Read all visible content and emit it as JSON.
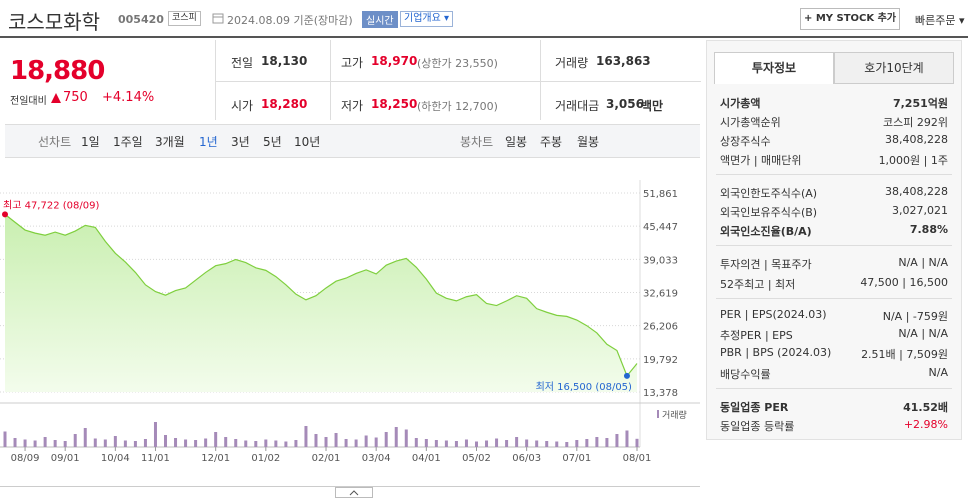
{
  "header": {
    "name": "코스모화학",
    "code": "005420",
    "market": "코스피",
    "date": "2024.08.09 기준(장마감)",
    "realtime": "실시간",
    "overview": "기업개요",
    "mystock": "+ MY STOCK 추가",
    "quick_order": "빠른주문"
  },
  "quote": {
    "price": "18,880",
    "change_label": "전일대비",
    "change": "750",
    "change_pct": "+4.14%"
  },
  "stats": [
    [
      {
        "label": "전일",
        "value": "18,130"
      },
      {
        "label": "고가",
        "value": "18,970",
        "note": "(상한가 23,550)"
      },
      {
        "label": "거래량",
        "value": "163,863"
      }
    ],
    [
      {
        "label": "시가",
        "value": "18,280"
      },
      {
        "label": "저가",
        "value": "18,250",
        "note": "(하한가 12,700)"
      },
      {
        "label": "거래대금",
        "value": "3,056",
        "unit": "백만"
      }
    ]
  ],
  "chart_tabs": {
    "line_label": "선차트",
    "line": [
      "1일",
      "1주일",
      "3개월",
      "1년",
      "3년",
      "5년",
      "10년"
    ],
    "candle_label": "봉차트",
    "candle": [
      "일봉",
      "주봉",
      "월봉"
    ]
  },
  "chart_data": {
    "type": "line",
    "color": "#7fcf3e",
    "categories": [
      null,
      null,
      "08/09",
      null,
      null,
      null,
      "09/01",
      null,
      null,
      null,
      null,
      "10/04",
      null,
      null,
      null,
      "11/01",
      null,
      null,
      null,
      null,
      null,
      "12/01",
      null,
      null,
      null,
      null,
      "01/02",
      null,
      null,
      null,
      null,
      null,
      "02/01",
      null,
      null,
      null,
      null,
      "03/04",
      null,
      null,
      null,
      null,
      "04/01",
      null,
      null,
      null,
      null,
      "05/02",
      null,
      null,
      null,
      null,
      "06/03",
      null,
      null,
      null,
      null,
      "07/01",
      null,
      null,
      null,
      null,
      null,
      "08/01"
    ],
    "values": [
      47722,
      46200,
      44700,
      44100,
      43700,
      44300,
      43700,
      44500,
      45600,
      45200,
      42500,
      40200,
      38500,
      36500,
      34100,
      32800,
      32100,
      33000,
      33500,
      35000,
      36500,
      37800,
      38200,
      39000,
      38400,
      37400,
      36900,
      35700,
      34100,
      32300,
      31200,
      32000,
      33500,
      34800,
      35400,
      36300,
      37000,
      36200,
      37900,
      38700,
      39200,
      37500,
      35200,
      32500,
      31500,
      31000,
      31800,
      32200,
      30500,
      30100,
      31000,
      32000,
      31500,
      29500,
      28800,
      28200,
      28000,
      27300,
      26200,
      24800,
      22600,
      21400,
      16500,
      18880
    ],
    "ylim": [
      13378,
      51861
    ],
    "yticks": [
      {
        "value": 51861,
        "label": "51,861"
      },
      {
        "value": 45447,
        "label": "45,447"
      },
      {
        "value": 39033,
        "label": "39,033"
      },
      {
        "value": 32619,
        "label": "32,619"
      },
      {
        "value": 26206,
        "label": "26,206"
      },
      {
        "value": 19792,
        "label": "19,792"
      },
      {
        "value": 13378,
        "label": "13,378"
      }
    ],
    "grid": true,
    "annotations": {
      "high": "최고 47,722 (08/09)",
      "low": "최저 16,500 (08/05)"
    },
    "volume": {
      "name": "거래량",
      "color": "#a58ab8",
      "ylim": [
        0,
        800000
      ],
      "values": [
        310000,
        180000,
        150000,
        130000,
        200000,
        140000,
        120000,
        260000,
        380000,
        170000,
        150000,
        220000,
        130000,
        120000,
        160000,
        500000,
        240000,
        180000,
        150000,
        140000,
        170000,
        300000,
        200000,
        160000,
        130000,
        120000,
        150000,
        130000,
        110000,
        140000,
        420000,
        260000,
        200000,
        280000,
        160000,
        150000,
        230000,
        190000,
        300000,
        400000,
        350000,
        180000,
        160000,
        140000,
        130000,
        120000,
        150000,
        110000,
        130000,
        170000,
        140000,
        200000,
        150000,
        130000,
        120000,
        110000,
        100000,
        140000,
        160000,
        200000,
        180000,
        260000,
        330000,
        163863
      ]
    }
  },
  "side": {
    "tabs": [
      "투자정보",
      "호가10단계"
    ],
    "sections": [
      [
        {
          "label": "시가총액",
          "value": "7,251억원"
        },
        {
          "label": "시가총액순위",
          "value": "코스피 292위"
        },
        {
          "label": "상장주식수",
          "value": "38,408,228"
        },
        {
          "label": "액면가 | 매매단위",
          "value": "1,000원 | 1주"
        }
      ],
      [
        {
          "label": "외국인한도주식수(A)",
          "value": "38,408,228"
        },
        {
          "label": "외국인보유주식수(B)",
          "value": "3,027,021"
        },
        {
          "label": "외국인소진율(B/A)",
          "value": "7.88%"
        }
      ],
      [
        {
          "label": "투자의견 | 목표주가",
          "value": "N/A | N/A"
        },
        {
          "label": "52주최고 | 최저",
          "value": "47,500 | 16,500"
        }
      ],
      [
        {
          "label": "PER | EPS(2024.03)",
          "value": "N/A | -759원"
        },
        {
          "label": "추정PER | EPS",
          "value": "N/A | N/A"
        },
        {
          "label": "PBR | BPS (2024.03)",
          "value": "2.51배 | 7,509원"
        },
        {
          "label": "배당수익률",
          "value": "N/A"
        }
      ],
      [
        {
          "label": "동일업종 PER",
          "value": "41.52배"
        },
        {
          "label": "동일업종 등락률",
          "value": "+2.98%"
        }
      ]
    ]
  }
}
